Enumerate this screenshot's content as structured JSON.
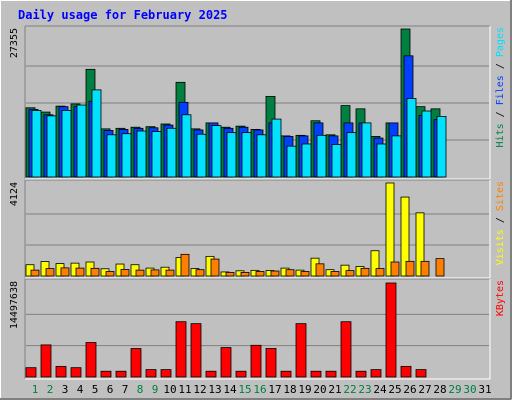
{
  "chart_data": {
    "type": "bar",
    "title": "Daily usage for February 2025",
    "x_labels": [
      "1",
      "2",
      "3",
      "4",
      "5",
      "6",
      "7",
      "8",
      "9",
      "10",
      "11",
      "12",
      "13",
      "14",
      "15",
      "16",
      "17",
      "18",
      "19",
      "20",
      "21",
      "22",
      "23",
      "24",
      "25",
      "26",
      "27",
      "28",
      "29",
      "30",
      "31"
    ],
    "weekend_days": [
      1,
      2,
      8,
      9,
      15,
      16,
      22,
      23,
      29,
      30
    ],
    "colors": {
      "background": "#c0c0c0",
      "title": "#0000ff",
      "weekday_label": "#000000",
      "weekend_label": "#008040",
      "hits": "#008040",
      "files": "#0040ff",
      "pages": "#00e0ff",
      "visits": "#ffff00",
      "sites": "#ff8000",
      "kbytes": "#ff0000"
    },
    "panels": [
      {
        "id": "hits_files_pages",
        "ymax_label": "27355",
        "ymax": 27355,
        "right_labels": [
          {
            "text": "Hits",
            "color_key": "hits"
          },
          {
            "text": "Files",
            "color_key": "files"
          },
          {
            "text": "Pages",
            "color_key": "pages"
          }
        ],
        "series": [
          {
            "name": "Hits",
            "color_key": "hits",
            "values": [
              12800,
              12000,
              13100,
              13500,
              19900,
              8900,
              9000,
              9200,
              9300,
              9800,
              17500,
              8900,
              10000,
              9200,
              9400,
              8800,
              14900,
              7600,
              7700,
              10400,
              7800,
              13200,
              12600,
              7500,
              10000,
              27355,
              13000,
              12600,
              0,
              0,
              0
            ]
          },
          {
            "name": "Files",
            "color_key": "files",
            "values": [
              12500,
              11500,
              13000,
              13000,
              14000,
              8600,
              8800,
              9000,
              9100,
              9600,
              13800,
              8700,
              10000,
              9000,
              9200,
              8700,
              10000,
              7500,
              7600,
              10000,
              7600,
              10000,
              10000,
              7200,
              10000,
              22400,
              11400,
              10600,
              0,
              0,
              0
            ]
          },
          {
            "name": "Pages",
            "color_key": "pages",
            "values": [
              12300,
              11300,
              12300,
              13300,
              16100,
              7800,
              8000,
              8500,
              8400,
              9000,
              11500,
              7900,
              9500,
              8200,
              8200,
              7800,
              10700,
              5700,
              6100,
              7700,
              6000,
              8200,
              10000,
              6100,
              7600,
              14500,
              12200,
              11200,
              0,
              0,
              0
            ]
          }
        ]
      },
      {
        "id": "visits_sites",
        "ymax_label": "4124",
        "ymax": 4124,
        "right_labels": [
          {
            "text": "Visits",
            "color_key": "visits"
          },
          {
            "text": "Sites",
            "color_key": "sites"
          }
        ],
        "series": [
          {
            "name": "Visits",
            "color_key": "visits",
            "values": [
              500,
              640,
              550,
              570,
              620,
              320,
              530,
              500,
              350,
              390,
              820,
              330,
              870,
              180,
              230,
              250,
              240,
              350,
              260,
              790,
              280,
              480,
              420,
              1120,
              4124,
              3500,
              2800,
              0,
              0,
              0,
              0
            ]
          },
          {
            "name": "Sites",
            "color_key": "sites",
            "values": [
              260,
              330,
              360,
              350,
              340,
              200,
              290,
              260,
              270,
              260,
              960,
              280,
              750,
              160,
              160,
              200,
              220,
              280,
              200,
              540,
              200,
              240,
              340,
              330,
              620,
              650,
              650,
              770,
              0,
              0,
              0
            ]
          }
        ]
      },
      {
        "id": "kbytes",
        "ymax_label": "14497638",
        "ymax": 14497638,
        "right_labels": [
          {
            "text": "KBytes",
            "color_key": "kbytes"
          }
        ],
        "series": [
          {
            "name": "KBytes",
            "color_key": "kbytes",
            "values": [
              1440000,
              4950000,
              1640000,
              1440000,
              5320000,
              890000,
              890000,
              4390000,
              1140000,
              1140000,
              8530000,
              8230000,
              890000,
              4540000,
              890000,
              4890000,
              4410000,
              890000,
              8230000,
              890000,
              890000,
              8530000,
              890000,
              1140000,
              14497638,
              1640000,
              1140000,
              0,
              0,
              0,
              0
            ]
          }
        ]
      }
    ]
  }
}
